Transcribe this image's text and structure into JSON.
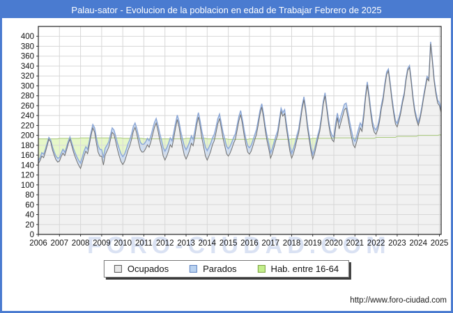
{
  "window": {
    "title": "Palau-sator - Evolucion de la poblacion en edad de Trabajar Febrero de 2025",
    "footer_url": "http://www.foro-ciudad.com"
  },
  "watermark": "FORO-CIUDAD.COM",
  "colors": {
    "titlebar_blue": "#4a7bd0",
    "frame_border_blue": "#4a7bd0",
    "plot_border": "#222222",
    "grid": "#d7d7d7",
    "ocupados_fill": "#f1f1f1",
    "ocupados_line": "#6e6e6e",
    "parados_fill": "#cfdff4",
    "parados_line": "#8aa6d6",
    "hab_fill": "#e6f7c9",
    "hab_line": "#a6c878",
    "swatch_ocupados": "#e9e9e9",
    "swatch_ocupados_border": "#555555",
    "swatch_parados": "#b9d2f0",
    "swatch_parados_border": "#5d82c1",
    "swatch_hab": "#c3ee8b",
    "swatch_hab_border": "#7aa23f",
    "watermark_blue": "#aebfe6"
  },
  "legend": {
    "items": [
      {
        "label": "Ocupados",
        "swatch": "swatch_ocupados"
      },
      {
        "label": "Parados",
        "swatch": "swatch_parados"
      },
      {
        "label": "Hab. entre 16-64",
        "swatch": "swatch_hab"
      }
    ]
  },
  "chart_data": {
    "type": "area",
    "title": "Palau-sator - Evolucion de la poblacion en edad de Trabajar Febrero de 2025",
    "xlabel": "",
    "ylabel": "",
    "x_start": "2006-01",
    "x_end": "2025-02",
    "months_in_last_year": 2,
    "years": [
      2006,
      2007,
      2008,
      2009,
      2010,
      2011,
      2012,
      2013,
      2014,
      2015,
      2016,
      2017,
      2018,
      2019,
      2020,
      2021,
      2022,
      2023,
      2024,
      2025
    ],
    "ylim": [
      0,
      400
    ],
    "ymax_draw": 420,
    "ytick_step": 20,
    "grid": true,
    "legend_position": "bottom",
    "stacking": "Parados is stacked on top of Ocupados; Hab. entre 16-64 is a background total band",
    "series": [
      {
        "name": "Ocupados",
        "values": [
          [
            143,
            149,
            158,
            155,
            166,
            179,
            192,
            187,
            171,
            160,
            151,
            146
          ],
          [
            148,
            157,
            164,
            159,
            170,
            183,
            192,
            179,
            166,
            156,
            147,
            139
          ],
          [
            133,
            145,
            158,
            168,
            163,
            181,
            200,
            215,
            206,
            184,
            166,
            158
          ],
          [
            158,
            140,
            160,
            168,
            176,
            191,
            206,
            202,
            187,
            171,
            158,
            147
          ],
          [
            141,
            147,
            158,
            170,
            179,
            192,
            208,
            216,
            203,
            185,
            171,
            166
          ],
          [
            167,
            173,
            181,
            176,
            187,
            202,
            216,
            225,
            210,
            191,
            176,
            158
          ],
          [
            150,
            158,
            168,
            181,
            176,
            194,
            215,
            232,
            217,
            194,
            176,
            160
          ],
          [
            152,
            160,
            170,
            184,
            179,
            197,
            221,
            237,
            218,
            194,
            176,
            158
          ],
          [
            150,
            158,
            168,
            181,
            189,
            205,
            223,
            234,
            215,
            194,
            179,
            163
          ],
          [
            158,
            164,
            173,
            184,
            192,
            210,
            229,
            242,
            223,
            200,
            181,
            166
          ],
          [
            162,
            168,
            179,
            191,
            202,
            221,
            242,
            257,
            236,
            210,
            189,
            173
          ],
          [
            154,
            163,
            176,
            189,
            200,
            223,
            248,
            239,
            244,
            215,
            191,
            168
          ],
          [
            154,
            163,
            176,
            191,
            205,
            229,
            254,
            272,
            247,
            215,
            191,
            168
          ],
          [
            152,
            163,
            179,
            194,
            208,
            233,
            263,
            280,
            252,
            223,
            202,
            191
          ],
          [
            187,
            215,
            236,
            213,
            226,
            239,
            252,
            255,
            236,
            215,
            197,
            181
          ],
          [
            175,
            187,
            202,
            215,
            208,
            236,
            275,
            302,
            275,
            244,
            218,
            206
          ],
          [
            202,
            212,
            229,
            254,
            271,
            299,
            323,
            330,
            302,
            271,
            244,
            223
          ],
          [
            217,
            229,
            244,
            265,
            281,
            310,
            331,
            337,
            307,
            273,
            247,
            231
          ],
          [
            220,
            233,
            252,
            275,
            295,
            315,
            310,
            385,
            349,
            310,
            284,
            265
          ],
          [
            260,
            246
          ]
        ]
      },
      {
        "name": "Parados",
        "stacked_on": "Ocupados",
        "values": [
          [
            6,
            6,
            7,
            7,
            6,
            5,
            4,
            4,
            6,
            7,
            7,
            8
          ],
          [
            7,
            7,
            8,
            7,
            6,
            5,
            5,
            6,
            7,
            8,
            9,
            10
          ],
          [
            11,
            11,
            10,
            9,
            9,
            8,
            7,
            7,
            9,
            11,
            13,
            14
          ],
          [
            13,
            15,
            14,
            12,
            11,
            10,
            9,
            9,
            11,
            13,
            15,
            16
          ],
          [
            16,
            15,
            14,
            13,
            12,
            11,
            10,
            9,
            11,
            13,
            15,
            16
          ],
          [
            15,
            14,
            13,
            13,
            12,
            11,
            10,
            9,
            11,
            13,
            15,
            17
          ],
          [
            18,
            17,
            16,
            14,
            13,
            12,
            10,
            9,
            11,
            14,
            16,
            18
          ],
          [
            19,
            18,
            17,
            15,
            13,
            12,
            10,
            9,
            11,
            14,
            16,
            18
          ],
          [
            19,
            18,
            16,
            14,
            13,
            11,
            10,
            9,
            10,
            12,
            14,
            15
          ],
          [
            15,
            14,
            13,
            12,
            11,
            10,
            9,
            8,
            9,
            11,
            12,
            13
          ],
          [
            13,
            12,
            11,
            10,
            10,
            9,
            8,
            7,
            8,
            9,
            10,
            11
          ],
          [
            11,
            10,
            10,
            9,
            9,
            8,
            7,
            7,
            8,
            9,
            10,
            10
          ],
          [
            10,
            10,
            9,
            9,
            8,
            8,
            7,
            6,
            7,
            8,
            9,
            9
          ],
          [
            9,
            9,
            8,
            8,
            7,
            7,
            6,
            6,
            7,
            8,
            8,
            9
          ],
          [
            10,
            9,
            9,
            13,
            13,
            12,
            11,
            10,
            11,
            12,
            13,
            13
          ],
          [
            13,
            12,
            11,
            10,
            10,
            9,
            7,
            6,
            7,
            8,
            9,
            9
          ],
          [
            9,
            8,
            8,
            7,
            7,
            6,
            5,
            4,
            5,
            6,
            7,
            7
          ],
          [
            7,
            7,
            6,
            6,
            5,
            5,
            4,
            4,
            5,
            5,
            6,
            6
          ],
          [
            6,
            6,
            5,
            5,
            5,
            4,
            4,
            4,
            5,
            5,
            6,
            6
          ],
          [
            6,
            6
          ]
        ]
      },
      {
        "name": "Hab. entre 16-64",
        "values_by_year": [
          193,
          194,
          195,
          195,
          194,
          193,
          193,
          194,
          193,
          192,
          193,
          192,
          193,
          194,
          195,
          194,
          196,
          198,
          200,
          201
        ]
      }
    ]
  }
}
